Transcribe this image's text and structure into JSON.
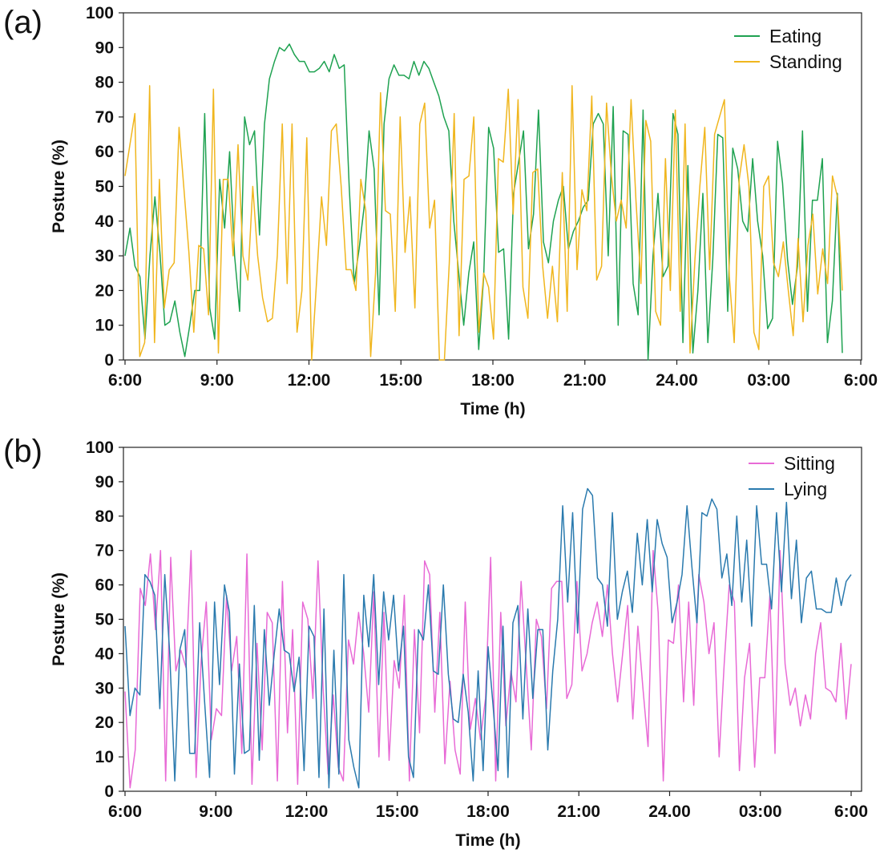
{
  "chart_data": [
    {
      "panel_label": "(a)",
      "type": "line",
      "xlabel": "Time (h)",
      "ylabel": "Posture (%)",
      "ylim": [
        0,
        100
      ],
      "yticks": [
        0,
        10,
        20,
        30,
        40,
        50,
        60,
        70,
        80,
        90,
        100
      ],
      "xticklabels": [
        "6:00",
        "9:00",
        "12:00",
        "15:00",
        "18:00",
        "21:00",
        "24.00",
        "03:00",
        "6:00"
      ],
      "grid": false,
      "legend_position": "top-right",
      "series": [
        {
          "name": "Eating",
          "color": "#1fa251",
          "values": [
            30,
            38,
            27,
            24,
            6,
            30,
            47,
            31,
            10,
            11,
            17,
            8,
            1,
            10,
            20,
            20,
            71,
            15,
            6,
            52,
            38,
            60,
            30,
            14,
            70,
            62,
            66,
            36,
            68,
            81,
            86,
            90,
            89,
            91,
            88,
            86,
            86,
            83,
            83,
            84,
            86,
            83,
            88,
            84,
            85,
            50,
            22,
            32,
            44,
            66,
            55,
            13,
            68,
            81,
            85,
            82,
            82,
            81,
            86,
            82,
            86,
            84,
            80,
            76,
            70,
            66,
            40,
            25,
            10,
            25,
            34,
            3,
            24,
            67,
            61,
            31,
            32,
            6,
            48,
            57,
            66,
            32,
            42,
            72,
            34,
            28,
            40,
            46,
            50,
            32,
            37,
            40,
            44,
            46,
            68,
            71,
            68,
            30,
            73,
            10,
            66,
            65,
            22,
            13,
            72,
            0,
            30,
            48,
            24,
            27,
            71,
            65,
            5,
            56,
            2,
            20,
            48,
            5,
            29,
            65,
            64,
            14,
            61,
            55,
            40,
            37,
            58,
            40,
            30,
            9,
            12,
            63,
            51,
            29,
            16,
            27,
            66,
            14,
            46,
            46,
            58,
            5,
            17,
            48,
            2
          ]
        },
        {
          "name": "Standing",
          "color": "#f0b61e",
          "values": [
            53,
            62,
            71,
            1,
            5,
            79,
            5,
            52,
            15,
            26,
            28,
            67,
            49,
            31,
            8,
            33,
            32,
            13,
            78,
            2,
            52,
            52,
            30,
            62,
            30,
            23,
            50,
            30,
            18,
            11,
            12,
            30,
            68,
            22,
            68,
            8,
            20,
            64,
            0,
            23,
            47,
            33,
            66,
            68,
            50,
            26,
            26,
            20,
            52,
            43,
            1,
            25,
            77,
            43,
            42,
            14,
            70,
            31,
            47,
            15,
            68,
            74,
            38,
            46,
            0,
            0,
            28,
            71,
            7,
            52,
            53,
            70,
            8,
            25,
            21,
            6,
            58,
            57,
            78,
            42,
            75,
            21,
            12,
            54,
            55,
            27,
            12,
            27,
            11,
            54,
            14,
            79,
            26,
            49,
            43,
            76,
            23,
            27,
            74,
            53,
            40,
            46,
            38,
            75,
            46,
            22,
            69,
            63,
            14,
            10,
            58,
            20,
            72,
            14,
            68,
            2,
            29,
            50,
            67,
            26,
            65,
            70,
            75,
            24,
            5,
            52,
            62,
            50,
            8,
            3,
            50,
            53,
            28,
            24,
            34,
            20,
            7,
            35,
            11,
            33,
            42,
            19,
            32,
            22,
            53,
            47,
            20
          ]
        }
      ]
    },
    {
      "panel_label": "(b)",
      "type": "line",
      "xlabel": "Time (h)",
      "ylabel": "Posture (%)",
      "ylim": [
        0,
        100
      ],
      "yticks": [
        0,
        10,
        20,
        30,
        40,
        50,
        60,
        70,
        80,
        90,
        100
      ],
      "xticklabels": [
        "6:00",
        "9:00",
        "12:00",
        "15:00",
        "18:00",
        "21:00",
        "24.00",
        "03:00",
        "6:00"
      ],
      "grid": false,
      "legend_position": "top-right",
      "series": [
        {
          "name": "Sitting",
          "color": "#e86ad6",
          "values": [
            29,
            1,
            12,
            59,
            54,
            69,
            47,
            70,
            3,
            68,
            35,
            41,
            36,
            70,
            4,
            38,
            55,
            15,
            24,
            22,
            57,
            35,
            45,
            11,
            69,
            2,
            43,
            12,
            52,
            49,
            3,
            61,
            17,
            47,
            2,
            55,
            50,
            27,
            67,
            30,
            5,
            28,
            7,
            3,
            44,
            37,
            52,
            40,
            23,
            58,
            10,
            52,
            9,
            38,
            30,
            57,
            3,
            47,
            17,
            67,
            63,
            23,
            52,
            8,
            32,
            12,
            5,
            55,
            18,
            27,
            15,
            27,
            68,
            3,
            52,
            19,
            35,
            26,
            61,
            37,
            12,
            50,
            45,
            24,
            59,
            61,
            61,
            27,
            31,
            61,
            35,
            40,
            49,
            55,
            45,
            60,
            40,
            26,
            40,
            54,
            21,
            48,
            30,
            13,
            70,
            52,
            3,
            44,
            43,
            60,
            26,
            55,
            25,
            63,
            55,
            40,
            49,
            10,
            37,
            60,
            55,
            6,
            33,
            43,
            7,
            33,
            33,
            57,
            11,
            70,
            37,
            25,
            30,
            19,
            28,
            21,
            40,
            49,
            30,
            29,
            26,
            43,
            21,
            37
          ]
        },
        {
          "name": "Lying",
          "color": "#2a7aae",
          "values": [
            48,
            22,
            30,
            28,
            63,
            61,
            57,
            24,
            63,
            40,
            3,
            41,
            47,
            11,
            11,
            49,
            26,
            4,
            55,
            31,
            60,
            52,
            5,
            37,
            11,
            12,
            54,
            9,
            47,
            25,
            40,
            53,
            41,
            40,
            29,
            39,
            6,
            48,
            45,
            4,
            53,
            1,
            41,
            5,
            63,
            15,
            7,
            1,
            57,
            42,
            63,
            31,
            58,
            44,
            57,
            35,
            48,
            10,
            4,
            47,
            44,
            60,
            35,
            34,
            60,
            34,
            21,
            20,
            34,
            23,
            3,
            35,
            6,
            42,
            25,
            6,
            48,
            4,
            49,
            54,
            21,
            53,
            27,
            47,
            47,
            12,
            35,
            50,
            83,
            55,
            81,
            46,
            82,
            88,
            86,
            62,
            60,
            48,
            81,
            50,
            58,
            64,
            52,
            75,
            60,
            79,
            58,
            79,
            72,
            68,
            49,
            55,
            63,
            83,
            65,
            49,
            81,
            80,
            85,
            82,
            62,
            69,
            54,
            80,
            55,
            73,
            48,
            83,
            66,
            66,
            53,
            81,
            58,
            84,
            56,
            73,
            49,
            62,
            64,
            53,
            53,
            52,
            52,
            62,
            54,
            61,
            63
          ]
        }
      ]
    }
  ]
}
